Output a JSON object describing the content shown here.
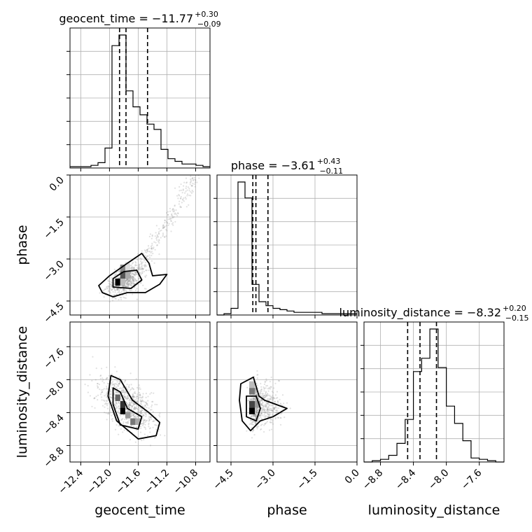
{
  "chart_data": {
    "type": "corner",
    "parameters": [
      "geocent_time",
      "phase",
      "luminosity_distance"
    ],
    "axis_labels": {
      "geocent_time": "geocent_time",
      "phase": "phase",
      "luminosity_distance": "luminosity_distance"
    },
    "ranges": {
      "geocent_time": [
        -12.55,
        -10.6
      ],
      "phase": [
        -5.0,
        0.0
      ],
      "luminosity_distance": [
        -9.0,
        -7.3
      ]
    },
    "ticks": {
      "geocent_time": [
        "-12.4",
        "-12.0",
        "-11.6",
        "-11.2",
        "-10.8"
      ],
      "phase": [
        "-4.5",
        "-3.0",
        "-1.5",
        "0.0"
      ],
      "luminosity_distance": [
        "-8.8",
        "-8.4",
        "-8.0",
        "-7.6"
      ]
    },
    "titles": [
      {
        "param": "geocent_time",
        "name": "geocent_time",
        "median": "−11.77",
        "plus": "+0.30",
        "minus": "−0.09"
      },
      {
        "param": "phase",
        "name": "phase",
        "median": "−3.61",
        "plus": "+0.43",
        "minus": "−0.11"
      },
      {
        "param": "luminosity_distance",
        "name": "luminosity_distance",
        "median": "−8.32",
        "plus": "+0.20",
        "minus": "−0.15"
      }
    ],
    "quantiles": {
      "geocent_time": [
        -11.86,
        -11.77,
        -11.47
      ],
      "phase": [
        -3.72,
        -3.61,
        -3.18
      ],
      "luminosity_distance": [
        -8.47,
        -8.32,
        -8.12
      ]
    },
    "histograms": {
      "geocent_time": {
        "edges_range": [
          -12.55,
          -10.6
        ],
        "counts": [
          0.01,
          0.01,
          0.01,
          0.02,
          0.04,
          0.15,
          0.92,
          1.0,
          0.58,
          0.46,
          0.4,
          0.33,
          0.29,
          0.14,
          0.07,
          0.05,
          0.03,
          0.03,
          0.02,
          0.01
        ]
      },
      "phase": {
        "edges_range": [
          -5.0,
          0.0
        ],
        "counts": [
          0.0,
          0.01,
          0.05,
          1.0,
          0.88,
          0.23,
          0.1,
          0.07,
          0.05,
          0.04,
          0.03,
          0.02,
          0.02,
          0.02,
          0.02,
          0.01,
          0.01,
          0.01,
          0.01,
          0.01
        ]
      },
      "luminosity_distance": {
        "edges_range": [
          -9.0,
          -7.3
        ],
        "counts": [
          0.0,
          0.01,
          0.02,
          0.05,
          0.14,
          0.32,
          0.68,
          0.78,
          1.0,
          0.71,
          0.42,
          0.29,
          0.16,
          0.03,
          0.02,
          0.01,
          0.0
        ]
      }
    },
    "grid": true,
    "legend": "none"
  }
}
